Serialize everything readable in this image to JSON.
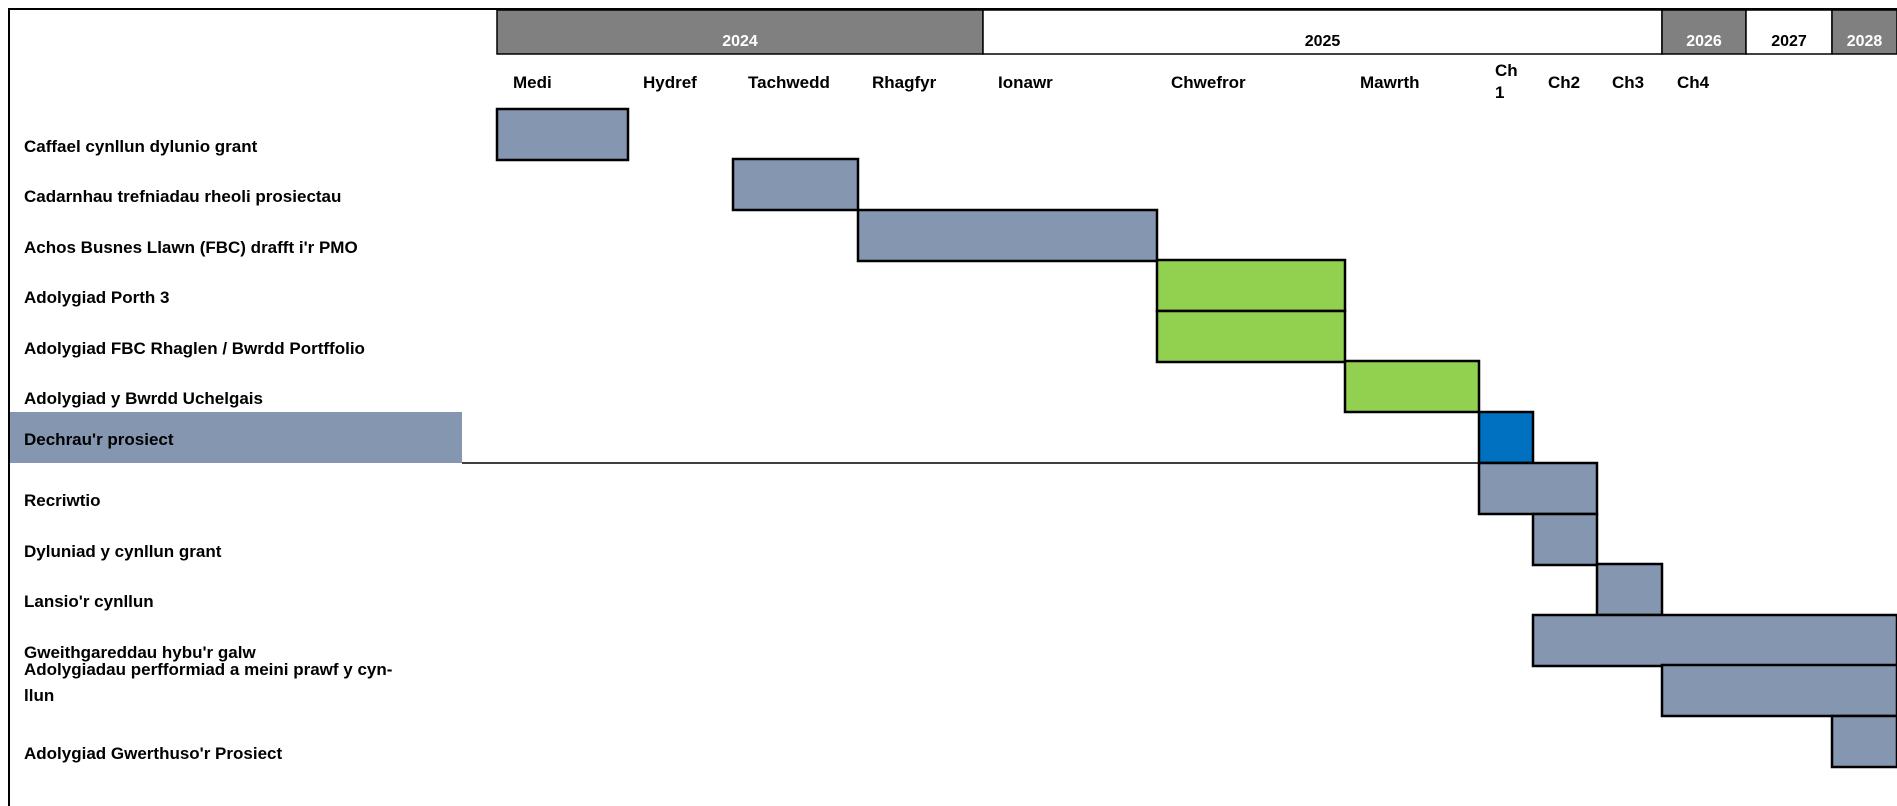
{
  "chart_data": {
    "type": "gantt",
    "title": "",
    "years": [
      {
        "label": "2024",
        "shaded": true
      },
      {
        "label": "2025",
        "shaded": false
      },
      {
        "label": "2026",
        "shaded": true
      },
      {
        "label": "2027",
        "shaded": false
      },
      {
        "label": "2028",
        "shaded": true
      }
    ],
    "periods": [
      "Medi",
      "Hydref",
      "Tachwedd",
      "Rhagfyr",
      "Ionawr",
      "Chwefror",
      "Mawrth",
      "Ch 1",
      "Ch2",
      "Ch3",
      "Ch4"
    ],
    "tasks": [
      {
        "label": "Caffael cynllun dylunio grant",
        "start": "Medi",
        "end": "Medi",
        "color": "#8496b0"
      },
      {
        "label": "Cadarnhau trefniadau rheoli prosiectau",
        "start": "Tachwedd",
        "end": "Tachwedd",
        "color": "#8496b0"
      },
      {
        "label": "Achos Busnes Llawn (FBC) drafft i'r PMO",
        "start": "Rhagfyr",
        "end": "Ionawr",
        "color": "#8496b0"
      },
      {
        "label": "Adolygiad Porth 3",
        "start": "Chwefror",
        "end": "Chwefror",
        "color": "#92d050"
      },
      {
        "label": "Adolygiad FBC Rhaglen / Bwrdd Portffolio",
        "start": "Chwefror",
        "end": "Chwefror",
        "color": "#92d050"
      },
      {
        "label": "Adolygiad y Bwrdd Uchelgais",
        "start": "Mawrth",
        "end": "Mawrth",
        "color": "#92d050"
      },
      {
        "label": "Dechrau'r prosiect",
        "start": "Ch 1",
        "end": "Ch 1",
        "color": "#0070c0",
        "highlight": true
      },
      {
        "label": "Recriwtio",
        "start": "Ch 1",
        "end": "Ch2",
        "color": "#8496b0"
      },
      {
        "label": "Dyluniad y cynllun grant",
        "start": "Ch2",
        "end": "Ch2",
        "color": "#8496b0"
      },
      {
        "label": "Lansio'r cynllun",
        "start": "Ch3",
        "end": "Ch3",
        "color": "#8496b0"
      },
      {
        "label": "Gweithgareddau hybu'r galw",
        "start": "Ch2",
        "end": "2028",
        "color": "#8496b0"
      },
      {
        "label": "Adolygiadau perfformiad a meini prawf y cyn-llun",
        "start": "Ch4",
        "end": "2028",
        "color": "#8496b0"
      },
      {
        "label": "Adolygiad Gwerthuso'r Prosiect",
        "start": "2028",
        "end": "2028",
        "color": "#8496b0"
      }
    ],
    "colors": {
      "header_shaded": "#808080",
      "highlight_row": "#8496b0",
      "bar_border": "#000000"
    }
  }
}
